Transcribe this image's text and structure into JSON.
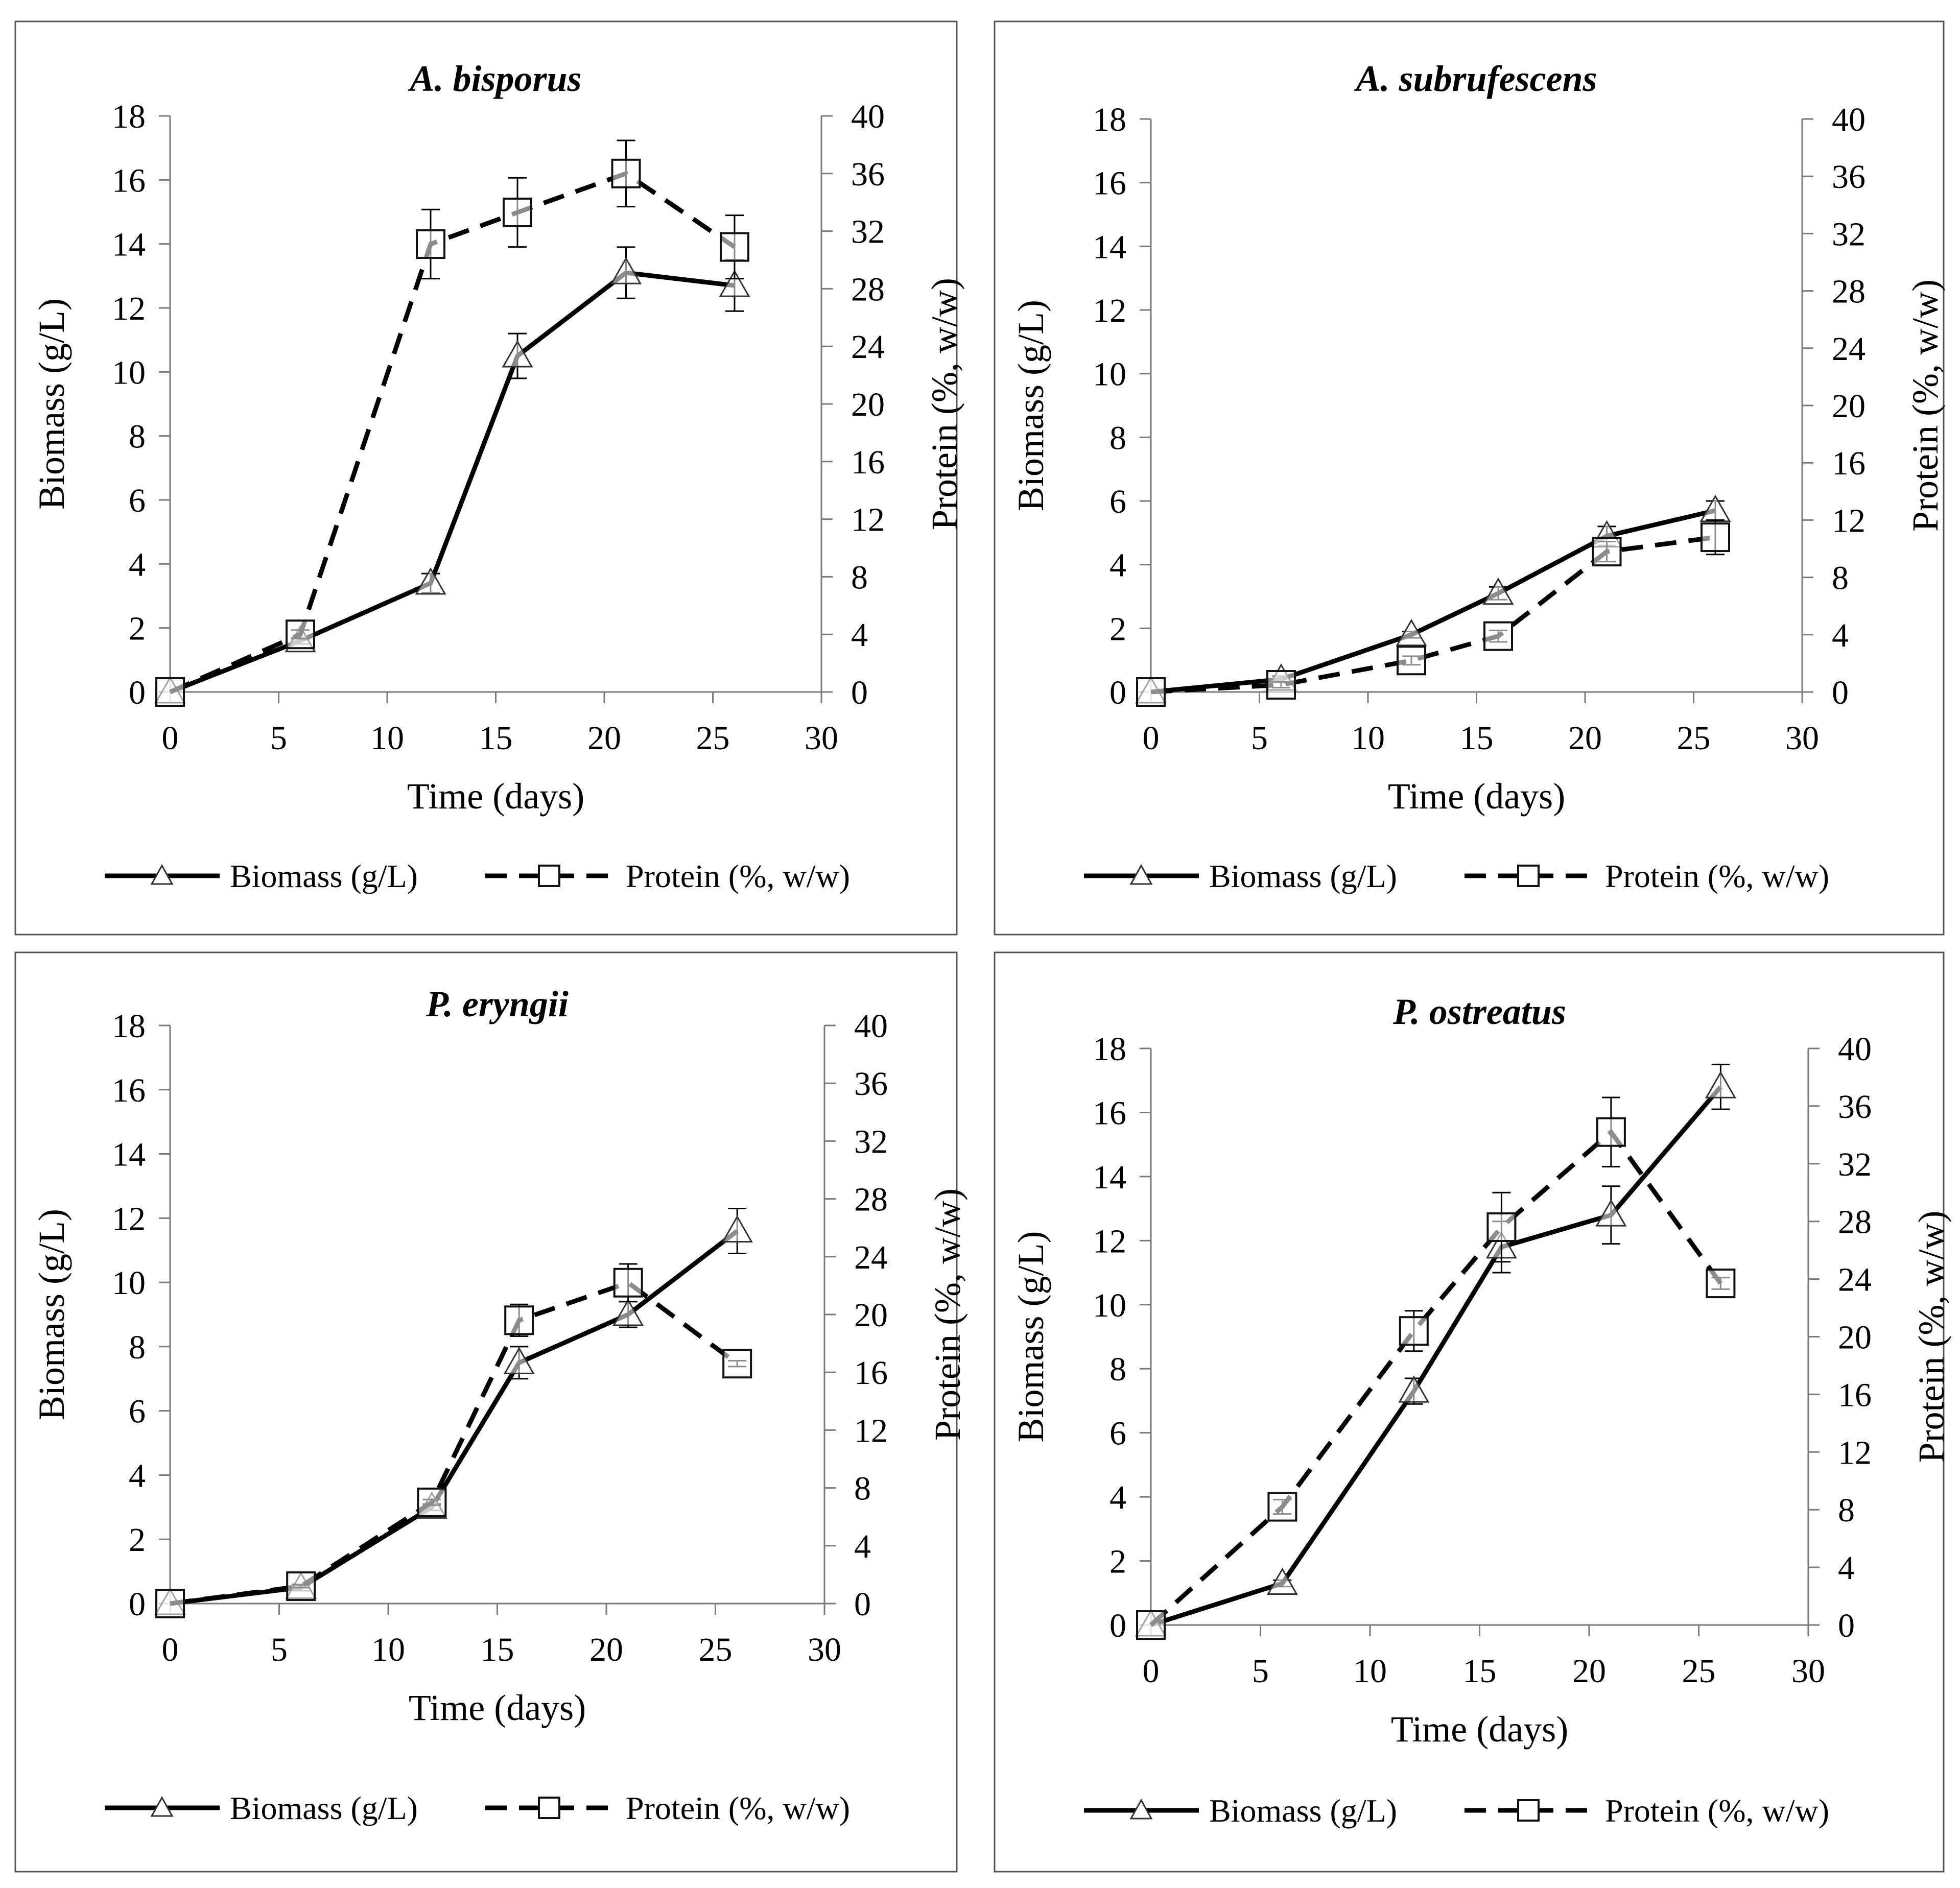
{
  "figure": {
    "legend": {
      "biomass_label": "Biomass (g/L)",
      "protein_label": "Protein (%,  w/w)"
    }
  },
  "chart_data": [
    {
      "type": "line",
      "title": "A. bisporus",
      "xlabel": "Time (days)",
      "ylabel": "Biomass (g/L)",
      "y2label": "Protein (%, w/w)",
      "xlim": [
        0,
        30
      ],
      "ylim": [
        0,
        18
      ],
      "y2lim": [
        0,
        40
      ],
      "xticks": [
        0,
        5,
        10,
        15,
        20,
        25,
        30
      ],
      "yticks": [
        0,
        2,
        4,
        6,
        8,
        10,
        12,
        14,
        16,
        18
      ],
      "y2ticks": [
        0,
        4,
        8,
        12,
        16,
        20,
        24,
        28,
        32,
        36,
        40
      ],
      "grid": false,
      "legend_position": "bottom",
      "series": [
        {
          "name": "Biomass (g/L)",
          "axis": "left",
          "marker": "triangle",
          "line": "solid",
          "x": [
            0,
            6,
            12,
            16,
            21,
            26
          ],
          "values": [
            0,
            1.6,
            3.4,
            10.5,
            13.1,
            12.7
          ],
          "errors": [
            0,
            0.1,
            0.3,
            0.7,
            0.8,
            0.8
          ]
        },
        {
          "name": "Protein (%, w/w)",
          "axis": "right",
          "marker": "square",
          "line": "dashed",
          "x": [
            0,
            6,
            12,
            16,
            21,
            26
          ],
          "values": [
            0,
            4.0,
            31.1,
            33.3,
            36.0,
            30.9
          ],
          "errors": [
            0,
            0.3,
            2.4,
            2.4,
            2.3,
            2.2
          ]
        }
      ]
    },
    {
      "type": "line",
      "title": "A. subrufescens",
      "xlabel": "Time (days)",
      "ylabel": "Biomass (g/L)",
      "y2label": "Protein (%, w/w)",
      "xlim": [
        0,
        30
      ],
      "ylim": [
        0,
        18
      ],
      "y2lim": [
        0,
        40
      ],
      "xticks": [
        0,
        5,
        10,
        15,
        20,
        25,
        30
      ],
      "yticks": [
        0,
        2,
        4,
        6,
        8,
        10,
        12,
        14,
        16,
        18
      ],
      "y2ticks": [
        0,
        4,
        8,
        12,
        16,
        20,
        24,
        28,
        32,
        36,
        40
      ],
      "grid": false,
      "legend_position": "bottom",
      "series": [
        {
          "name": "Biomass (g/L)",
          "axis": "left",
          "marker": "triangle",
          "line": "solid",
          "x": [
            0,
            6,
            12,
            16,
            21,
            26
          ],
          "values": [
            0,
            0.4,
            1.8,
            3.1,
            4.9,
            5.7
          ],
          "errors": [
            0,
            0.1,
            0.1,
            0.2,
            0.3,
            0.3
          ]
        },
        {
          "name": "Protein (%, w/w)",
          "axis": "right",
          "marker": "square",
          "line": "dashed",
          "x": [
            0,
            6,
            12,
            16,
            21,
            26
          ],
          "values": [
            0,
            0.5,
            2.2,
            3.9,
            9.8,
            10.8
          ],
          "errors": [
            0,
            0.2,
            0.3,
            0.4,
            0.7,
            1.2
          ]
        }
      ]
    },
    {
      "type": "line",
      "title": "P. eryngii",
      "xlabel": "Time (days)",
      "ylabel": "Biomass (g/L)",
      "y2label": "Protein (%, w/w)",
      "xlim": [
        0,
        30
      ],
      "ylim": [
        0,
        18
      ],
      "y2lim": [
        0,
        40
      ],
      "xticks": [
        0,
        5,
        10,
        15,
        20,
        25,
        30
      ],
      "yticks": [
        0,
        2,
        4,
        6,
        8,
        10,
        12,
        14,
        16,
        18
      ],
      "y2ticks": [
        0,
        4,
        8,
        12,
        16,
        20,
        24,
        28,
        32,
        36,
        40
      ],
      "grid": false,
      "legend_position": "bottom",
      "series": [
        {
          "name": "Biomass (g/L)",
          "axis": "left",
          "marker": "triangle",
          "line": "solid",
          "x": [
            0,
            6,
            12,
            16,
            21,
            26
          ],
          "values": [
            0,
            0.5,
            3.0,
            7.5,
            9.0,
            11.6
          ],
          "errors": [
            0,
            0.1,
            0.1,
            0.5,
            0.4,
            0.7
          ]
        },
        {
          "name": "Protein (%, w/w)",
          "axis": "right",
          "marker": "square",
          "line": "dashed",
          "x": [
            0,
            6,
            12,
            16,
            21,
            26
          ],
          "values": [
            0,
            1.2,
            7.0,
            19.6,
            22.2,
            16.6
          ],
          "errors": [
            0,
            0.1,
            0.2,
            1.1,
            1.3,
            0.2
          ]
        }
      ]
    },
    {
      "type": "line",
      "title": "P. ostreatus",
      "xlabel": "Time (days)",
      "ylabel": "Biomass (g/L)",
      "y2label": "Protein (%, w/w)",
      "xlim": [
        0,
        30
      ],
      "ylim": [
        0,
        18
      ],
      "y2lim": [
        0,
        40
      ],
      "xticks": [
        0,
        5,
        10,
        15,
        20,
        25,
        30
      ],
      "yticks": [
        0,
        2,
        4,
        6,
        8,
        10,
        12,
        14,
        16,
        18
      ],
      "y2ticks": [
        0,
        4,
        8,
        12,
        16,
        20,
        24,
        28,
        32,
        36,
        40
      ],
      "grid": false,
      "legend_position": "bottom",
      "series": [
        {
          "name": "Biomass (g/L)",
          "axis": "left",
          "marker": "triangle",
          "line": "solid",
          "x": [
            0,
            6,
            12,
            16,
            21,
            26
          ],
          "values": [
            0,
            1.3,
            7.3,
            11.8,
            12.8,
            16.8
          ],
          "errors": [
            0,
            0.1,
            0.4,
            0.8,
            0.9,
            0.7
          ]
        },
        {
          "name": "Protein (%, w/w)",
          "axis": "right",
          "marker": "square",
          "line": "dashed",
          "x": [
            0,
            6,
            12,
            16,
            21,
            26
          ],
          "values": [
            0,
            8.2,
            20.4,
            27.6,
            34.2,
            23.7
          ],
          "errors": [
            0,
            0.5,
            1.4,
            2.4,
            2.4,
            0.4
          ]
        }
      ]
    }
  ]
}
